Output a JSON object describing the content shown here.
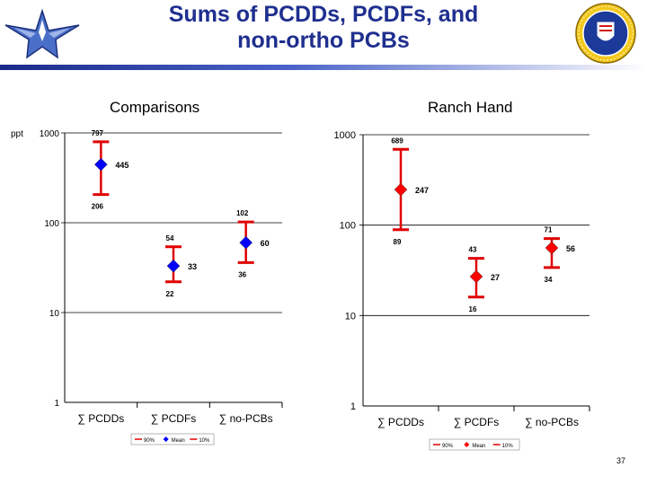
{
  "slide": {
    "title_line1": "Sums of PCDDs, PCDFs, and",
    "title_line2": "non-ortho PCBs",
    "page_number": "37",
    "logos": [
      "air-force-wings-logo",
      "military-crest-logo"
    ]
  },
  "chart_data": [
    {
      "type": "scatter",
      "title": "Comparisons",
      "yscale": "log",
      "ylim": [
        1,
        1000
      ],
      "yticks": [
        "1",
        "10",
        "100",
        "1000"
      ],
      "ylabel": "ppt",
      "categories": [
        "∑ PCDDs",
        "∑ PCDFs",
        "∑ no-PCBs"
      ],
      "marker_color": "#0000ff",
      "range_color": "#e00000",
      "series": [
        {
          "name": "90%",
          "values": [
            797,
            54,
            102
          ],
          "labels": [
            "797",
            "54",
            "102"
          ]
        },
        {
          "name": "Mean",
          "values": [
            445,
            33,
            60
          ],
          "labels": [
            "445",
            "33",
            "60"
          ]
        },
        {
          "name": "10%",
          "values": [
            206,
            22,
            36
          ],
          "labels": [
            "206",
            "22",
            "36"
          ]
        }
      ],
      "legend": "bottom",
      "grid": false
    },
    {
      "type": "scatter",
      "title": "Ranch Hand",
      "yscale": "log",
      "ylim": [
        1,
        1000
      ],
      "yticks": [
        "1",
        "10",
        "100",
        "1000"
      ],
      "categories": [
        "∑ PCDDs",
        "∑ PCDFs",
        "∑ no-PCBs"
      ],
      "marker_color": "#ff0000",
      "range_color": "#e00000",
      "series": [
        {
          "name": "90%",
          "values": [
            689,
            43,
            71
          ],
          "labels": [
            "689",
            "43",
            "71"
          ]
        },
        {
          "name": "Mean",
          "values": [
            247,
            27,
            56
          ],
          "labels": [
            "247",
            "27",
            "56"
          ]
        },
        {
          "name": "10%",
          "values": [
            89,
            16,
            34
          ],
          "labels": [
            "89",
            "16",
            "34"
          ]
        }
      ],
      "legend": "bottom",
      "grid": false
    }
  ]
}
